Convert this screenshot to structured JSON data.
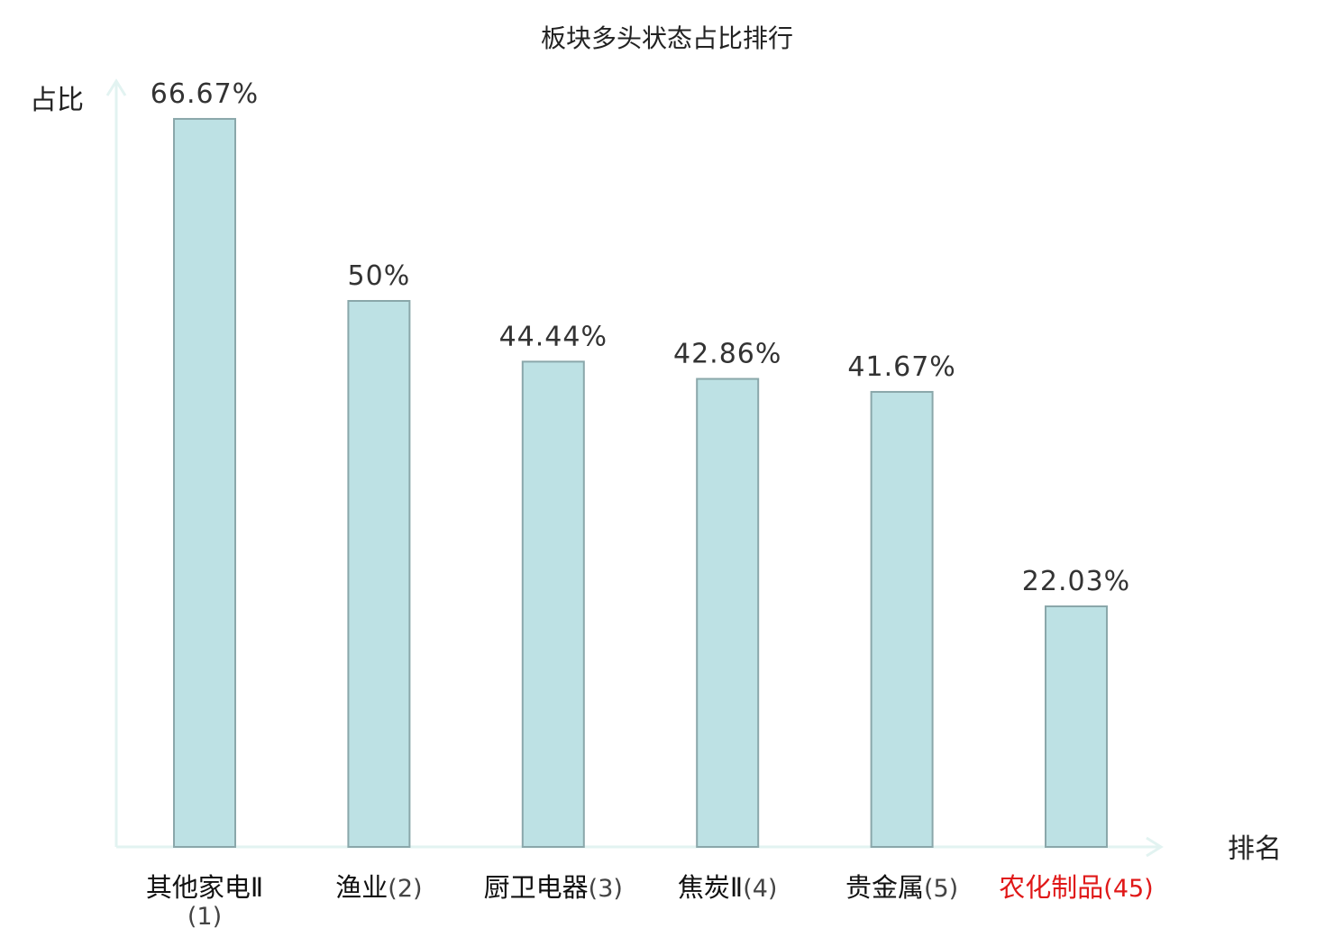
{
  "chart_data": {
    "type": "bar",
    "title": "板块多头状态占比排行",
    "ylabel": "占比",
    "xlabel": "排名",
    "ylim": [
      0,
      70
    ],
    "grid": false,
    "legend": "none",
    "categories": [
      {
        "name": "其他家电Ⅱ",
        "rank": "(1)",
        "value": 66.67,
        "label": "66.67%",
        "highlight": false
      },
      {
        "name": "渔业",
        "rank": "(2)",
        "value": 50,
        "label": "50%",
        "highlight": false
      },
      {
        "name": "厨卫电器",
        "rank": "(3)",
        "value": 44.44,
        "label": "44.44%",
        "highlight": false
      },
      {
        "name": "焦炭Ⅱ",
        "rank": "(4)",
        "value": 42.86,
        "label": "42.86%",
        "highlight": false
      },
      {
        "name": "贵金属",
        "rank": "(5)",
        "value": 41.67,
        "label": "41.67%",
        "highlight": false
      },
      {
        "name": "农化制品",
        "rank": "(45)",
        "value": 22.03,
        "label": "22.03%",
        "highlight": true
      }
    ],
    "colors": {
      "bar_fill": "#bde1e4",
      "bar_stroke": "#8aa7aa",
      "axis": "#e2f3f1",
      "highlight": "#e01818"
    }
  }
}
